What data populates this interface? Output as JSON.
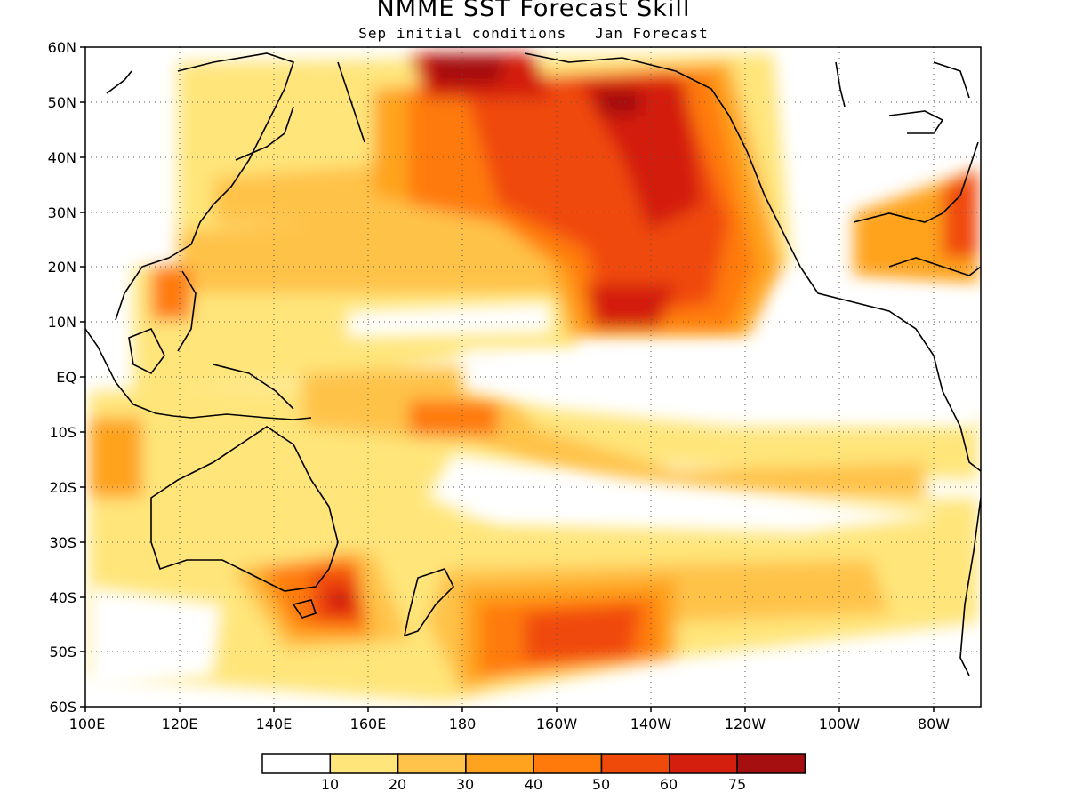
{
  "title": "NMME SST Forecast Skill",
  "subtitle": "Sep initial conditions   Jan Forecast",
  "map": {
    "lon_range": [
      100,
      290
    ],
    "lat_range": [
      -60,
      60
    ],
    "gridlines": "dotted",
    "lon_ticks": [
      "100E",
      "120E",
      "140E",
      "160E",
      "180",
      "160W",
      "140W",
      "120W",
      "100W",
      "80W"
    ],
    "lat_ticks": [
      "60N",
      "50N",
      "40N",
      "30N",
      "20N",
      "10N",
      "EQ",
      "10S",
      "20S",
      "30S",
      "40S",
      "50S",
      "60S"
    ]
  },
  "colorbar": {
    "colors": [
      "#ffffff",
      "#ffe57a",
      "#ffc24a",
      "#ffa31f",
      "#ff7a0a",
      "#f04a0a",
      "#d41f0f",
      "#a50f0f"
    ],
    "labels": [
      "10",
      "20",
      "30",
      "40",
      "50",
      "60",
      "75"
    ]
  }
}
